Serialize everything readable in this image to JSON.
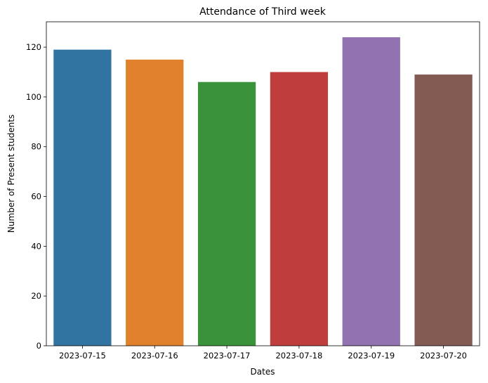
{
  "chart_data": {
    "type": "bar",
    "title": "Attendance of Third week",
    "xlabel": "Dates",
    "ylabel": "Number of Present students",
    "categories": [
      "2023-07-15",
      "2023-07-16",
      "2023-07-17",
      "2023-07-18",
      "2023-07-19",
      "2023-07-20"
    ],
    "values": [
      119,
      115,
      106,
      110,
      124,
      109
    ],
    "colors": [
      "#3274a1",
      "#e1812c",
      "#3a923a",
      "#c03d3e",
      "#9372b2",
      "#845b53"
    ],
    "yticks": [
      0,
      20,
      40,
      60,
      80,
      100,
      120
    ],
    "ylim": [
      0,
      130.2
    ],
    "grid": false,
    "legend": "none"
  }
}
